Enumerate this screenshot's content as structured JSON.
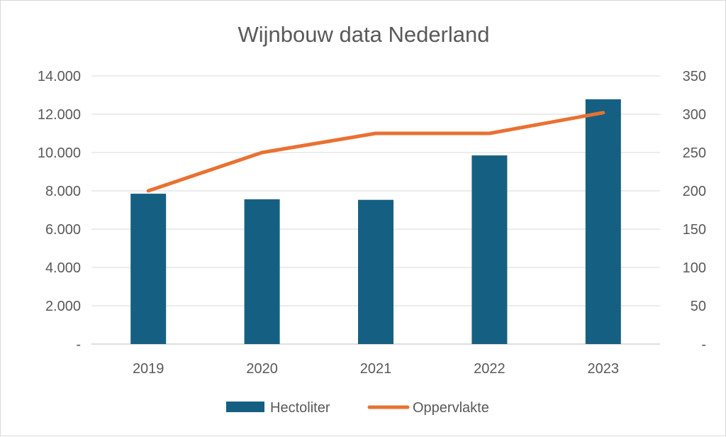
{
  "chart_data": {
    "type": "bar+line",
    "title": "Wijnbouw data Nederland",
    "categories": [
      "2019",
      "2020",
      "2021",
      "2022",
      "2023"
    ],
    "series": [
      {
        "name": "Hectoliter",
        "type": "bar",
        "axis": "left",
        "color": "#156082",
        "values": [
          7850,
          7560,
          7530,
          9850,
          12780
        ]
      },
      {
        "name": "Oppervlakte",
        "type": "line",
        "axis": "right",
        "color": "#e97132",
        "values": [
          200,
          250,
          275,
          275,
          302
        ]
      }
    ],
    "y_left": {
      "ylim": [
        0,
        14000
      ],
      "tick_labels": [
        "-",
        "2.000",
        "4.000",
        "6.000",
        "8.000",
        "10.000",
        "12.000",
        "14.000"
      ]
    },
    "y_right": {
      "ylim": [
        0,
        350
      ],
      "tick_labels": [
        "-",
        "50",
        "100",
        "150",
        "200",
        "250",
        "300",
        "350"
      ]
    },
    "grid": true,
    "legend_position": "bottom"
  }
}
